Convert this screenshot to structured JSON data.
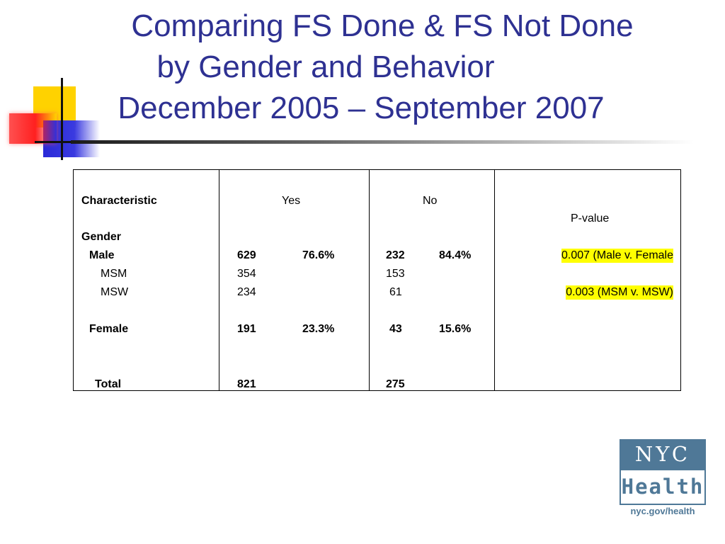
{
  "title": {
    "line1": "Comparing FS Done & FS Not Done",
    "line2": "by Gender and Behavior",
    "line3": "December 2005 – September 2007"
  },
  "table": {
    "headers": {
      "characteristic": "Characteristic",
      "yes": "Yes",
      "no": "No",
      "pvalue": "P-value"
    },
    "gender_label": "Gender",
    "rows": {
      "male": {
        "label": "Male",
        "yes_n": "629",
        "yes_pct": "76.6%",
        "no_n": "232",
        "no_pct": "84.4%",
        "p": "0.007 (Male v. Female"
      },
      "msm": {
        "label": "MSM",
        "yes_n": "354",
        "no_n": "153"
      },
      "msw": {
        "label": "MSW",
        "yes_n": "234",
        "no_n": "61",
        "p": "0.003 (MSM v. MSW)"
      },
      "female": {
        "label": "Female",
        "yes_n": "191",
        "yes_pct": "23.3%",
        "no_n": "43",
        "no_pct": "15.6%"
      },
      "total": {
        "label": "Total",
        "yes_n": "821",
        "no_n": "275"
      }
    }
  },
  "logo": {
    "top": "NYC",
    "middle": "Health",
    "url": "nyc.gov/health"
  },
  "colors": {
    "title": "#2e3192",
    "highlight": "#ffff00",
    "logo": "#4f7897"
  }
}
